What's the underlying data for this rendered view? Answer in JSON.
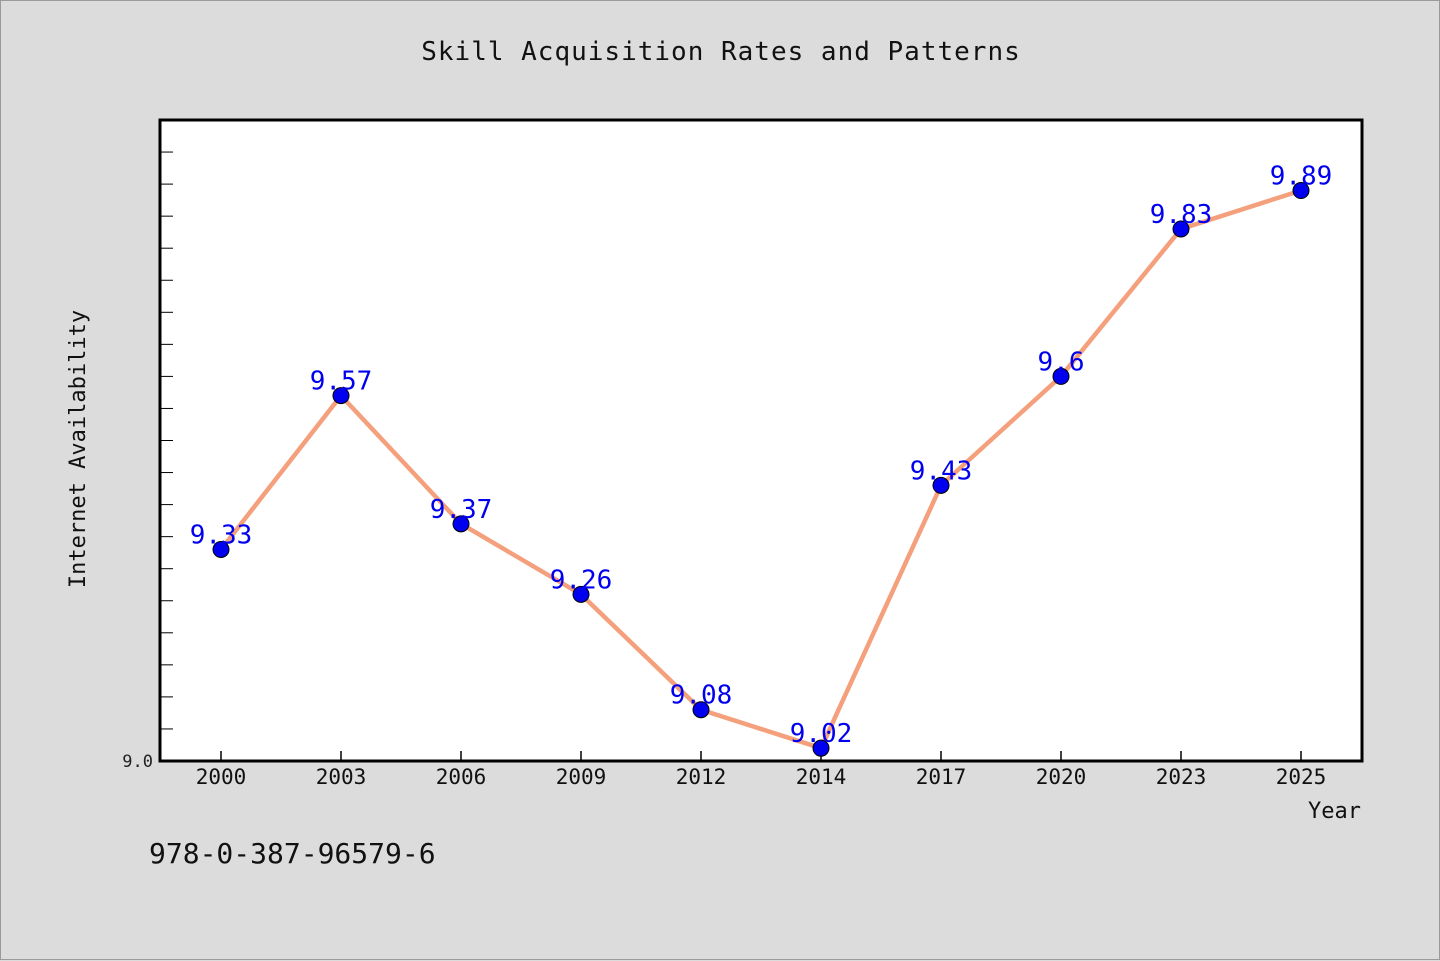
{
  "chart_data": {
    "type": "line",
    "title": "Skill Acquisition Rates and Patterns",
    "xlabel": "Year",
    "ylabel": "Internet Availability",
    "categories": [
      "2000",
      "2003",
      "2006",
      "2009",
      "2012",
      "2014",
      "2017",
      "2020",
      "2023",
      "2025"
    ],
    "series": [
      {
        "values": [
          9.33,
          9.57,
          9.37,
          9.26,
          9.08,
          9.02,
          9.43,
          9.6,
          9.83,
          9.89
        ],
        "data_labels": [
          "9.33",
          "9.57",
          "9.37",
          "9.26",
          "9.08",
          "9.02",
          "9.43",
          "9.6",
          "9.83",
          "9.89"
        ],
        "line_color": "#f5a07c",
        "marker_color": "#0000ee",
        "label_color": "#0000ee"
      }
    ],
    "ylim": [
      9.0,
      10.0
    ],
    "y_tick_labels": [
      "9.0"
    ],
    "grid": false,
    "legend": "none"
  },
  "annotation": "978-0-387-96579-6"
}
